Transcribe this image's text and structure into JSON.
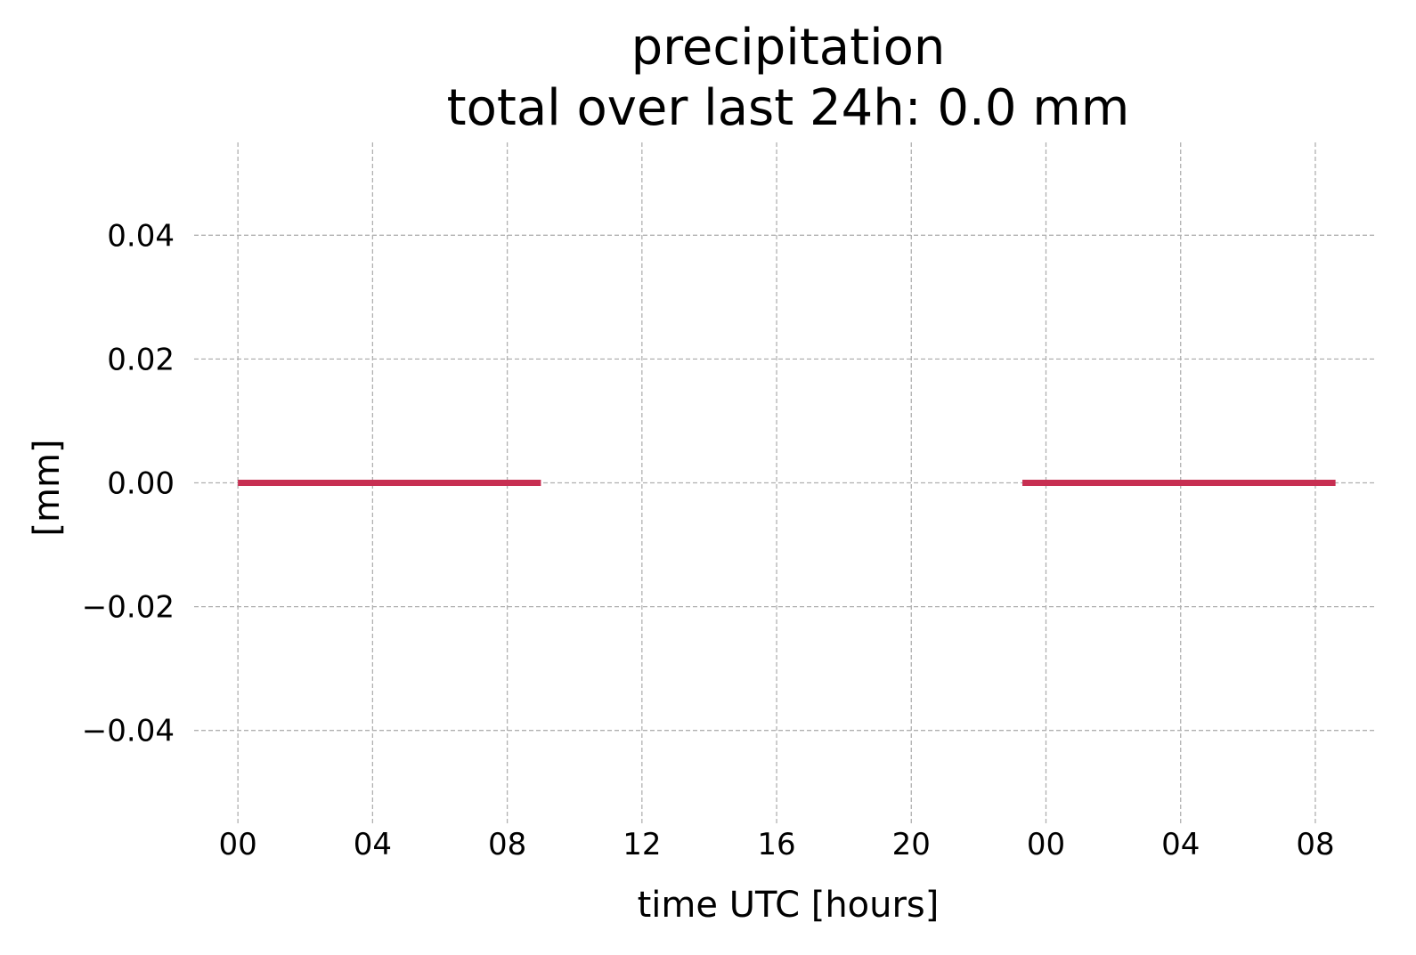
{
  "chart_data": {
    "type": "line",
    "title": [
      "precipitation",
      "total over last 24h: 0.0 mm"
    ],
    "xlabel": "time UTC [hours]",
    "ylabel": "[mm]",
    "x_tick_labels": [
      "00",
      "04",
      "08",
      "12",
      "16",
      "20",
      "00",
      "04",
      "08"
    ],
    "x_tick_hours": [
      0,
      4,
      8,
      12,
      16,
      20,
      24,
      28,
      32
    ],
    "y_tick_labels": [
      "0.04",
      "0.02",
      "0.00",
      "−0.02",
      "−0.04"
    ],
    "y_tick_values": [
      0.04,
      0.02,
      0.0,
      -0.02,
      -0.04
    ],
    "ylim": [
      -0.055,
      0.055
    ],
    "xlim": [
      -1.3,
      33.8
    ],
    "grid": true,
    "series": [
      {
        "color": "#c72f52",
        "segments": [
          {
            "x": [
              0,
              9
            ],
            "y": [
              0.0,
              0.0
            ]
          },
          {
            "x": [
              23.3,
              32.6
            ],
            "y": [
              0.0,
              0.0
            ]
          }
        ]
      }
    ]
  }
}
